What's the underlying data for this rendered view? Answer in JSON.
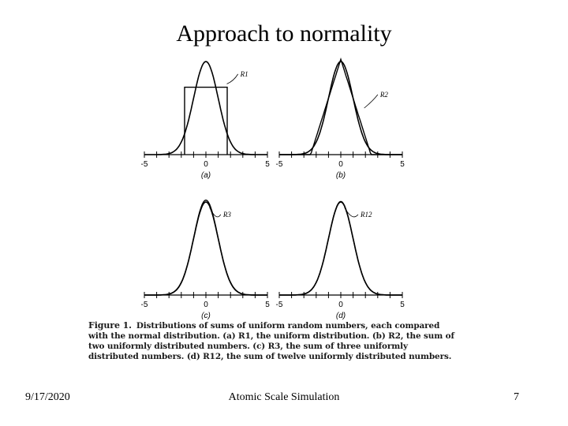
{
  "slide": {
    "title": "Approach to normality",
    "footer_date": "9/17/2020",
    "footer_center": "Atomic Scale Simulation",
    "page_number": "7"
  },
  "caption": {
    "lead": "Figure 1.",
    "text": "Distributions of sums of uniform random numbers, each compared with the normal distribution. (a) R1, the uniform distribution. (b) R2, the sum of two uniformly distributed numbers. (c) R3, the sum of three uniformly distributed numbers. (d) R12, the sum of twelve uniformly distributed numbers."
  },
  "panels": [
    {
      "label": "(a)",
      "curve_label": "R1",
      "k": 1,
      "xmin": "-5",
      "xzero": "0",
      "xmax": "5"
    },
    {
      "label": "(b)",
      "curve_label": "R2",
      "k": 2,
      "xmin": "-5",
      "xzero": "0",
      "xmax": "5"
    },
    {
      "label": "(c)",
      "curve_label": "R3",
      "k": 3,
      "xmin": "-5",
      "xzero": "0",
      "xmax": "5"
    },
    {
      "label": "(d)",
      "curve_label": "R12",
      "k": 12,
      "xmin": "-5",
      "xzero": "0",
      "xmax": "5"
    }
  ],
  "chart_data": [
    {
      "type": "line",
      "title": "(a)",
      "series": [
        {
          "name": "R1",
          "distribution": "uniform",
          "range": [
            -1.73,
            1.73
          ]
        },
        {
          "name": "normal",
          "mean": 0,
          "sd": 1
        }
      ],
      "xlim": [
        -5,
        5
      ]
    },
    {
      "type": "line",
      "title": "(b)",
      "series": [
        {
          "name": "R2",
          "distribution": "triangular",
          "range": [
            -2.45,
            2.45
          ]
        },
        {
          "name": "normal",
          "mean": 0,
          "sd": 1
        }
      ],
      "xlim": [
        -5,
        5
      ]
    },
    {
      "type": "line",
      "title": "(c)",
      "series": [
        {
          "name": "R3"
        },
        {
          "name": "normal",
          "mean": 0,
          "sd": 1
        }
      ],
      "xlim": [
        -5,
        5
      ]
    },
    {
      "type": "line",
      "title": "(d)",
      "series": [
        {
          "name": "R12"
        },
        {
          "name": "normal",
          "mean": 0,
          "sd": 1
        }
      ],
      "xlim": [
        -5,
        5
      ]
    }
  ]
}
